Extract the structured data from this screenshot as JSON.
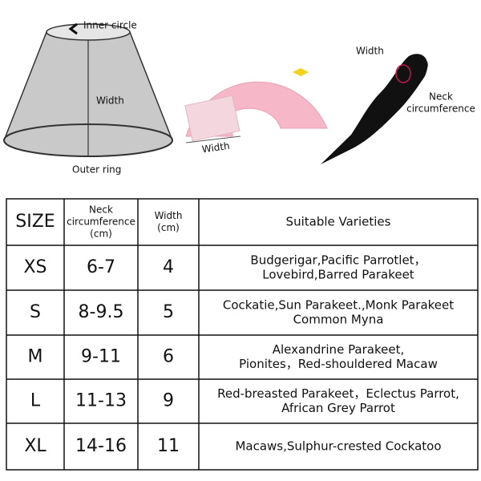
{
  "diagram": {
    "cone": {
      "top_label": "Inner circle",
      "side_label": "Width",
      "bottom_label": "Outer ring"
    },
    "collar": {
      "width_label": "Width"
    },
    "parrot": {
      "width_label": "Width",
      "neck_label": [
        "Neck",
        "circumference"
      ]
    }
  },
  "table": {
    "header": {
      "size": "SIZE",
      "neck": [
        "Neck",
        "circumference",
        "(cm)"
      ],
      "width": [
        "Width",
        "(cm)"
      ],
      "varieties": "Suitable Varieties"
    },
    "rows": [
      {
        "size": "XS",
        "neck": "6-7",
        "width": "4",
        "varieties": [
          "Budgerigar,Pacific Parrotlet，",
          "Lovebird,Barred Parakeet"
        ]
      },
      {
        "size": "S",
        "neck": "8-9.5",
        "width": "5",
        "varieties": [
          "Cockatie,Sun Parakeet.,Monk Parakeet",
          "Common Myna"
        ]
      },
      {
        "size": "M",
        "neck": "9-11",
        "width": "6",
        "varieties": [
          "Alexandrine Parakeet,",
          "Pionites，Red-shouldered Macaw"
        ]
      },
      {
        "size": "L",
        "neck": "11-13",
        "width": "9",
        "varieties": [
          "Red-breasted Parakeet，Eclectus Parrot,",
          "African Grey Parrot"
        ]
      },
      {
        "size": "XL",
        "neck": "14-16",
        "width": "11",
        "varieties": [
          "Macaws,Sulphur-crested Cockatoo"
        ]
      }
    ]
  }
}
